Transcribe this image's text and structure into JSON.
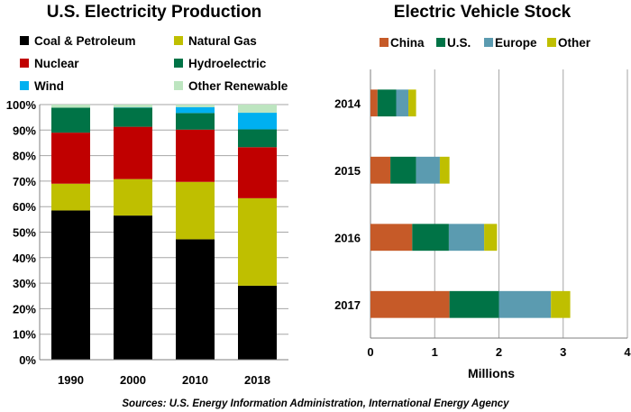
{
  "source": "Sources: U.S. Energy Information Administration, International Energy Agency",
  "chart_data": [
    {
      "type": "bar",
      "stacked": true,
      "orientation": "vertical",
      "title": "U.S. Electricity Production",
      "categories": [
        "1990",
        "2000",
        "2010",
        "2018"
      ],
      "ylim": [
        0,
        100
      ],
      "yticks": [
        0,
        10,
        20,
        30,
        40,
        50,
        60,
        70,
        80,
        90,
        100
      ],
      "ytick_labels": [
        "0%",
        "10%",
        "20%",
        "30%",
        "40%",
        "50%",
        "60%",
        "70%",
        "80%",
        "90%",
        "100%"
      ],
      "grid": true,
      "legend_position": "top",
      "series": [
        {
          "name": "Coal & Petroleum",
          "color": "#000000",
          "values": [
            58.5,
            56.5,
            47.2,
            29.0
          ]
        },
        {
          "name": "Natural Gas",
          "color": "#bfbf00",
          "values": [
            10.5,
            14.3,
            22.5,
            34.3
          ]
        },
        {
          "name": "Nuclear",
          "color": "#c00000",
          "values": [
            20.0,
            20.5,
            20.5,
            20.0
          ]
        },
        {
          "name": "Hydroelectric",
          "color": "#007346",
          "values": [
            9.8,
            7.5,
            6.5,
            7.0
          ]
        },
        {
          "name": "Wind",
          "color": "#00b0f0",
          "values": [
            0.0,
            0.1,
            2.3,
            6.5
          ]
        },
        {
          "name": "Other Renewable",
          "color": "#bde5c0",
          "values": [
            1.2,
            1.1,
            1.0,
            3.2
          ]
        }
      ]
    },
    {
      "type": "bar",
      "stacked": true,
      "orientation": "horizontal",
      "title": "Electric Vehicle Stock",
      "categories": [
        "2014",
        "2015",
        "2016",
        "2017"
      ],
      "xlabel": "Millions",
      "xlim": [
        0,
        4
      ],
      "xticks": [
        0,
        1,
        2,
        3,
        4
      ],
      "grid": true,
      "legend_position": "top",
      "series": [
        {
          "name": "China",
          "color": "#c65a28",
          "values": [
            0.11,
            0.31,
            0.65,
            1.23
          ]
        },
        {
          "name": "U.S.",
          "color": "#007346",
          "values": [
            0.29,
            0.4,
            0.57,
            0.77
          ]
        },
        {
          "name": "Europe",
          "color": "#5b9bb0",
          "values": [
            0.19,
            0.37,
            0.55,
            0.81
          ]
        },
        {
          "name": "Other",
          "color": "#bfbf00",
          "values": [
            0.12,
            0.15,
            0.2,
            0.3
          ]
        }
      ]
    }
  ]
}
